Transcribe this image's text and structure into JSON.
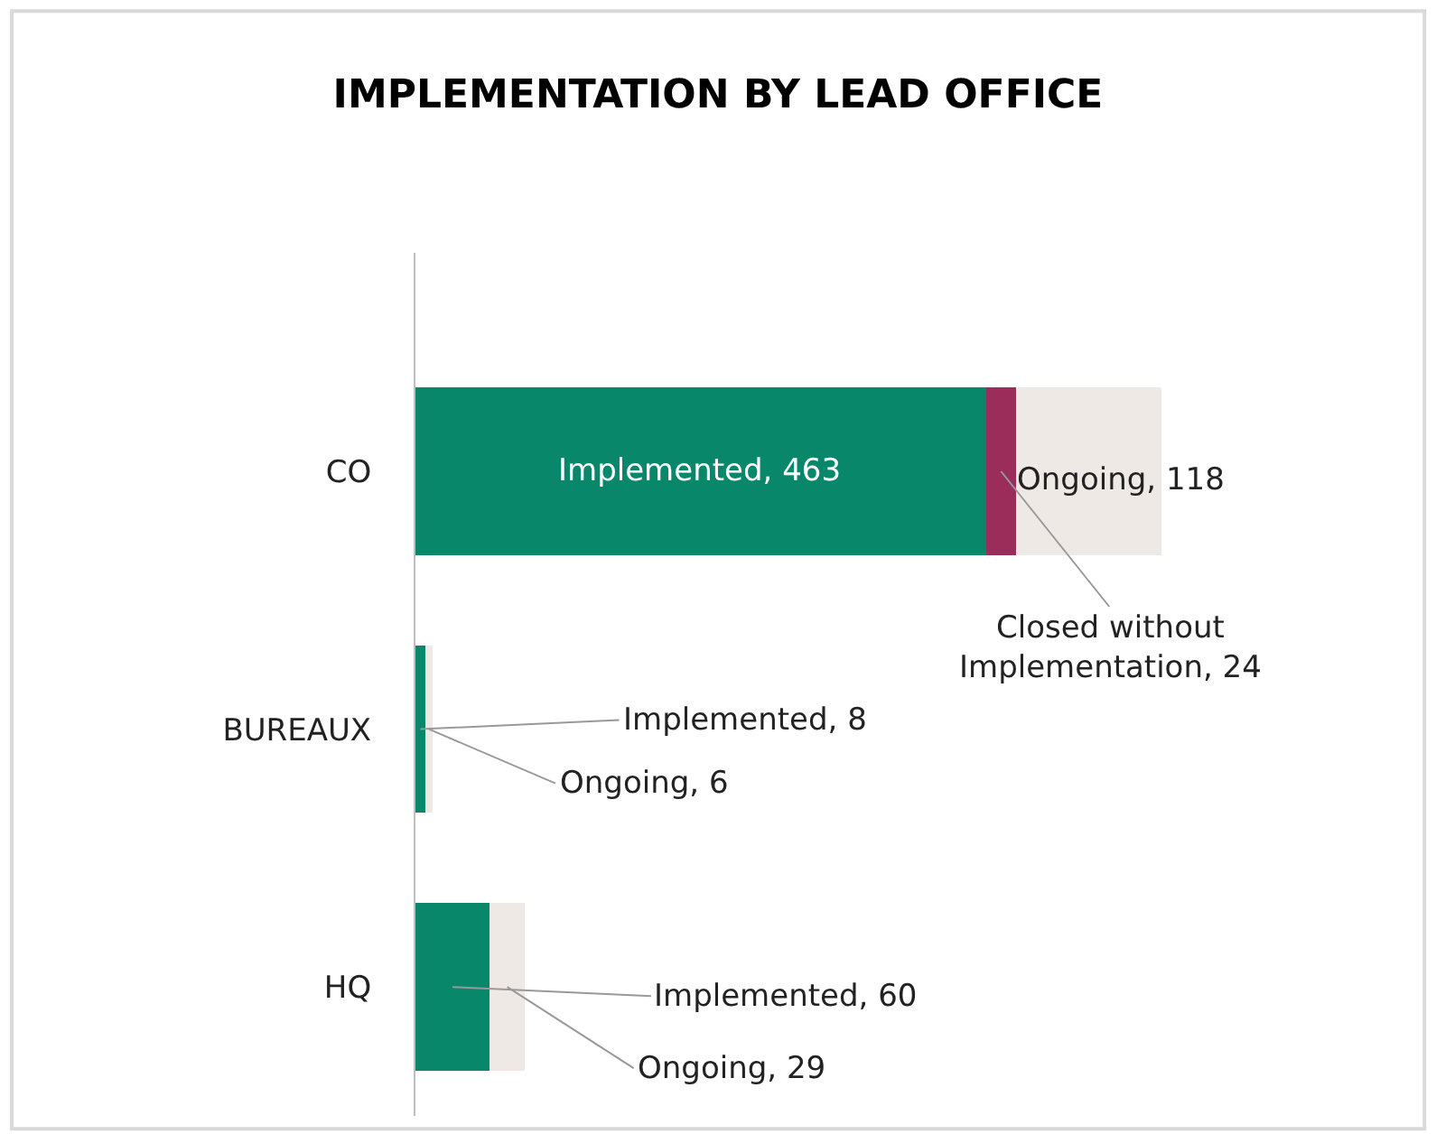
{
  "chart_data": {
    "type": "bar",
    "orientation": "horizontal",
    "stacked": true,
    "title": "IMPLEMENTATION BY LEAD OFFICE",
    "categories": [
      "CO",
      "BUREAUX",
      "HQ"
    ],
    "series": [
      {
        "color": "#08876a",
        "values": [
          463,
          8,
          60
        ],
        "value_labels": [
          "Implemented, 463",
          "Implemented, 8",
          "Implemented, 60"
        ]
      },
      {
        "color": "#9b2d5a",
        "values": [
          24,
          null,
          null
        ],
        "value_labels": [
          "Closed without Implementation, 24",
          null,
          null
        ]
      },
      {
        "color": "#efe9e6",
        "values": [
          118,
          6,
          29
        ],
        "value_labels": [
          "Ongoing, 118",
          "Ongoing, 6",
          "Ongoing, 29"
        ]
      }
    ],
    "legend": false,
    "tick_labels": "y"
  }
}
